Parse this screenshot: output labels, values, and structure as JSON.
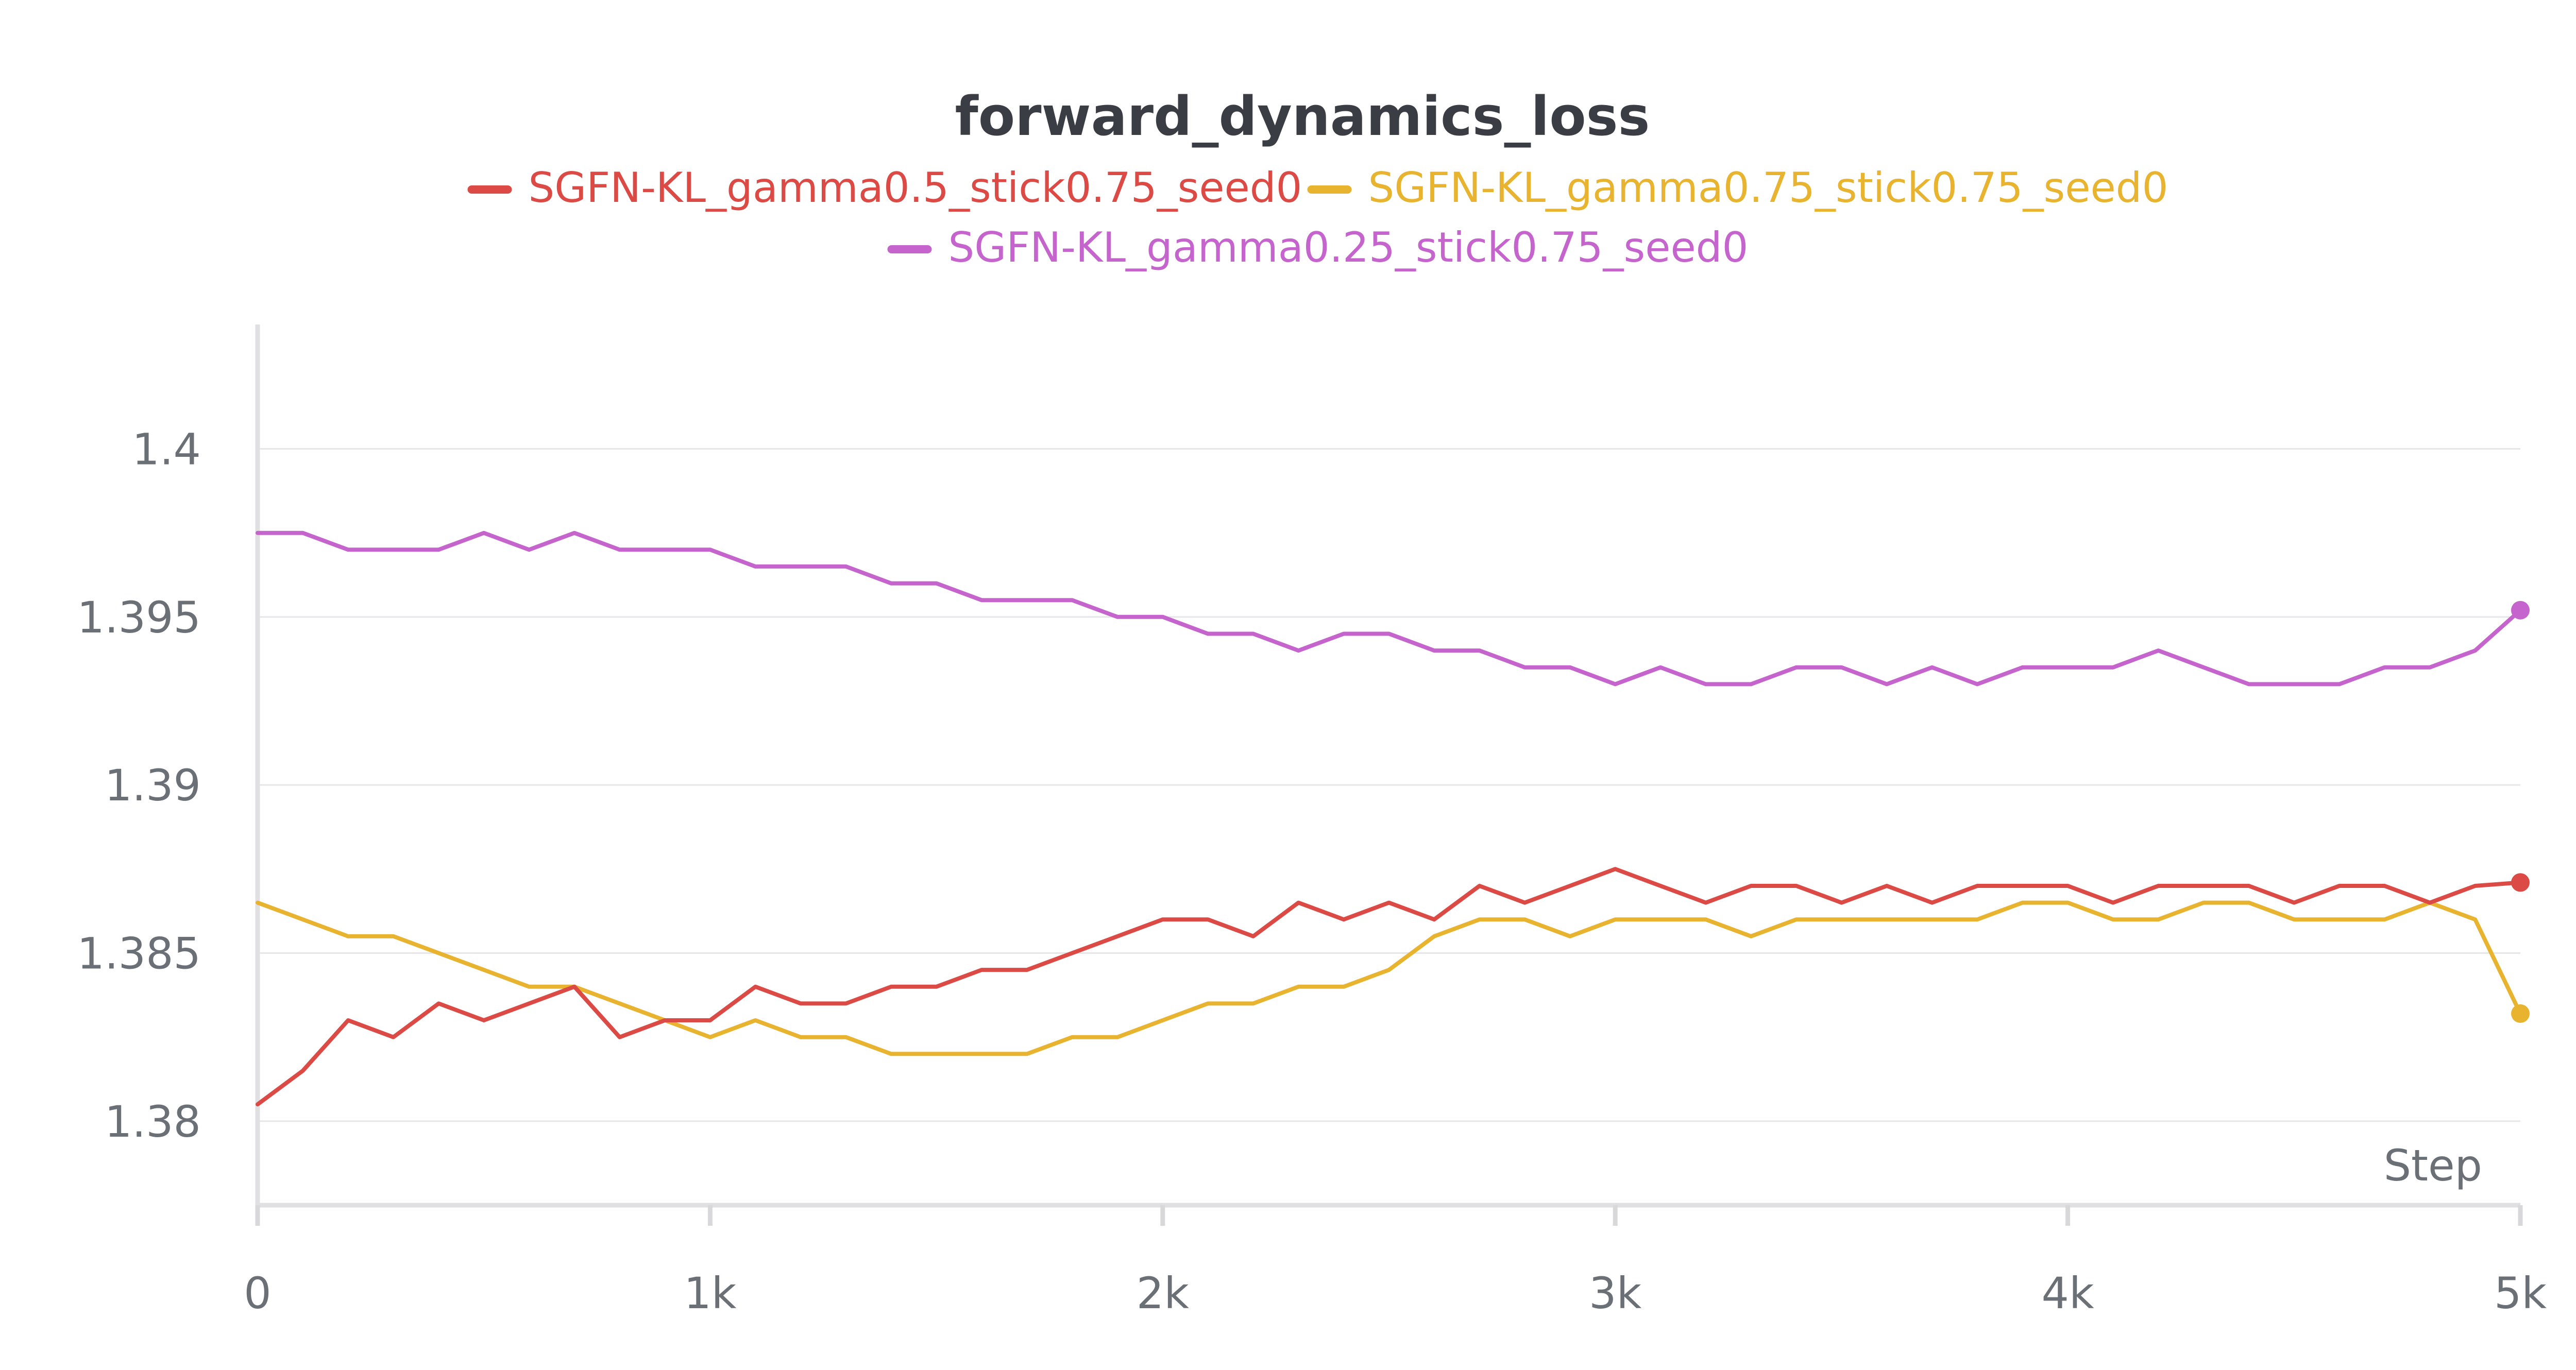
{
  "chart_data": {
    "type": "line",
    "title": "forward_dynamics_loss",
    "xlabel": "Step",
    "ylabel": "",
    "xlim": [
      0,
      5000
    ],
    "ylim": [
      1.3775,
      1.4037
    ],
    "x_ticks": [
      0,
      1000,
      2000,
      3000,
      4000,
      5000
    ],
    "x_tick_labels": [
      "0",
      "1k",
      "2k",
      "3k",
      "4k",
      "5k"
    ],
    "y_ticks": [
      1.38,
      1.385,
      1.39,
      1.395,
      1.4
    ],
    "y_tick_labels": [
      "1.38",
      "1.385",
      "1.39",
      "1.395",
      "1.4"
    ],
    "grid": true,
    "legend_position": "top",
    "series": [
      {
        "name": "SGFN-KL_gamma0.5_stick0.75_seed0",
        "color": "#dc4a45",
        "x": [
          0,
          100,
          200,
          300,
          400,
          500,
          600,
          700,
          800,
          900,
          1000,
          1100,
          1200,
          1300,
          1400,
          1500,
          1600,
          1700,
          1800,
          1900,
          2000,
          2100,
          2200,
          2300,
          2400,
          2500,
          2600,
          2700,
          2800,
          2900,
          3000,
          3100,
          3200,
          3300,
          3400,
          3500,
          3600,
          3700,
          3800,
          3900,
          4000,
          4100,
          4200,
          4300,
          4400,
          4500,
          4600,
          4700,
          4800,
          4900,
          5000
        ],
        "y": [
          1.3805,
          1.3815,
          1.383,
          1.3825,
          1.3835,
          1.383,
          1.3835,
          1.384,
          1.3825,
          1.383,
          1.383,
          1.384,
          1.3835,
          1.3835,
          1.384,
          1.384,
          1.3845,
          1.3845,
          1.385,
          1.3855,
          1.386,
          1.386,
          1.3855,
          1.3865,
          1.386,
          1.3865,
          1.386,
          1.387,
          1.3865,
          1.387,
          1.3875,
          1.387,
          1.3865,
          1.387,
          1.387,
          1.3865,
          1.387,
          1.3865,
          1.387,
          1.387,
          1.387,
          1.3865,
          1.387,
          1.387,
          1.387,
          1.3865,
          1.387,
          1.387,
          1.3865,
          1.387,
          1.3871
        ]
      },
      {
        "name": "SGFN-KL_gamma0.75_stick0.75_seed0",
        "color": "#e8b32f",
        "x": [
          0,
          100,
          200,
          300,
          400,
          500,
          600,
          700,
          800,
          900,
          1000,
          1100,
          1200,
          1300,
          1400,
          1500,
          1600,
          1700,
          1800,
          1900,
          2000,
          2100,
          2200,
          2300,
          2400,
          2500,
          2600,
          2700,
          2800,
          2900,
          3000,
          3100,
          3200,
          3300,
          3400,
          3500,
          3600,
          3700,
          3800,
          3900,
          4000,
          4100,
          4200,
          4300,
          4400,
          4500,
          4600,
          4700,
          4800,
          4900,
          5000
        ],
        "y": [
          1.3865,
          1.386,
          1.3855,
          1.3855,
          1.385,
          1.3845,
          1.384,
          1.384,
          1.3835,
          1.383,
          1.3825,
          1.383,
          1.3825,
          1.3825,
          1.382,
          1.382,
          1.382,
          1.382,
          1.3825,
          1.3825,
          1.383,
          1.3835,
          1.3835,
          1.384,
          1.384,
          1.3845,
          1.3855,
          1.386,
          1.386,
          1.3855,
          1.386,
          1.386,
          1.386,
          1.3855,
          1.386,
          1.386,
          1.386,
          1.386,
          1.386,
          1.3865,
          1.3865,
          1.386,
          1.386,
          1.3865,
          1.3865,
          1.386,
          1.386,
          1.386,
          1.3865,
          1.386,
          1.3832
        ]
      },
      {
        "name": "SGFN-KL_gamma0.25_stick0.75_seed0",
        "color": "#c564cc",
        "x": [
          0,
          100,
          200,
          300,
          400,
          500,
          600,
          700,
          800,
          900,
          1000,
          1100,
          1200,
          1300,
          1400,
          1500,
          1600,
          1700,
          1800,
          1900,
          2000,
          2100,
          2200,
          2300,
          2400,
          2500,
          2600,
          2700,
          2800,
          2900,
          3000,
          3100,
          3200,
          3300,
          3400,
          3500,
          3600,
          3700,
          3800,
          3900,
          4000,
          4100,
          4200,
          4300,
          4400,
          4500,
          4600,
          4700,
          4800,
          4900,
          5000
        ],
        "y": [
          1.3975,
          1.3975,
          1.397,
          1.397,
          1.397,
          1.3975,
          1.397,
          1.3975,
          1.397,
          1.397,
          1.397,
          1.3965,
          1.3965,
          1.3965,
          1.396,
          1.396,
          1.3955,
          1.3955,
          1.3955,
          1.395,
          1.395,
          1.3945,
          1.3945,
          1.394,
          1.3945,
          1.3945,
          1.394,
          1.394,
          1.3935,
          1.3935,
          1.393,
          1.3935,
          1.393,
          1.393,
          1.3935,
          1.3935,
          1.393,
          1.3935,
          1.393,
          1.3935,
          1.3935,
          1.3935,
          1.394,
          1.3935,
          1.393,
          1.393,
          1.393,
          1.3935,
          1.3935,
          1.394,
          1.3952
        ]
      }
    ]
  }
}
